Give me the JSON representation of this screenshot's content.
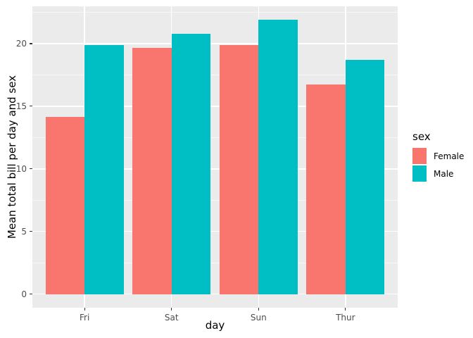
{
  "chart_data": {
    "type": "bar",
    "title": "",
    "xlabel": "day",
    "ylabel": "Mean total bill per day and sex",
    "categories": [
      "Fri",
      "Sat",
      "Sun",
      "Thur"
    ],
    "series": [
      {
        "name": "Female",
        "color": "#F8766D",
        "values": [
          14.15,
          19.68,
          19.87,
          16.72
        ]
      },
      {
        "name": "Male",
        "color": "#00BFC4",
        "values": [
          19.86,
          20.8,
          21.89,
          18.71
        ]
      }
    ],
    "legend": {
      "title": "sex",
      "position": "right",
      "entries": [
        "Female",
        "Male"
      ]
    },
    "ylim": [
      -1.09,
      22.98
    ],
    "yticks": [
      0,
      5,
      10,
      15,
      20
    ],
    "yticks_minor": [
      2.5,
      7.5,
      12.5,
      17.5,
      22.5
    ],
    "grid": "on",
    "style": {
      "panel_bg": "#EBEBEB",
      "grid_color": "#FFFFFF",
      "tick_label_color": "#4D4D4D",
      "tick_mark_color": "#333333",
      "axis_title_color": "#000000"
    }
  }
}
